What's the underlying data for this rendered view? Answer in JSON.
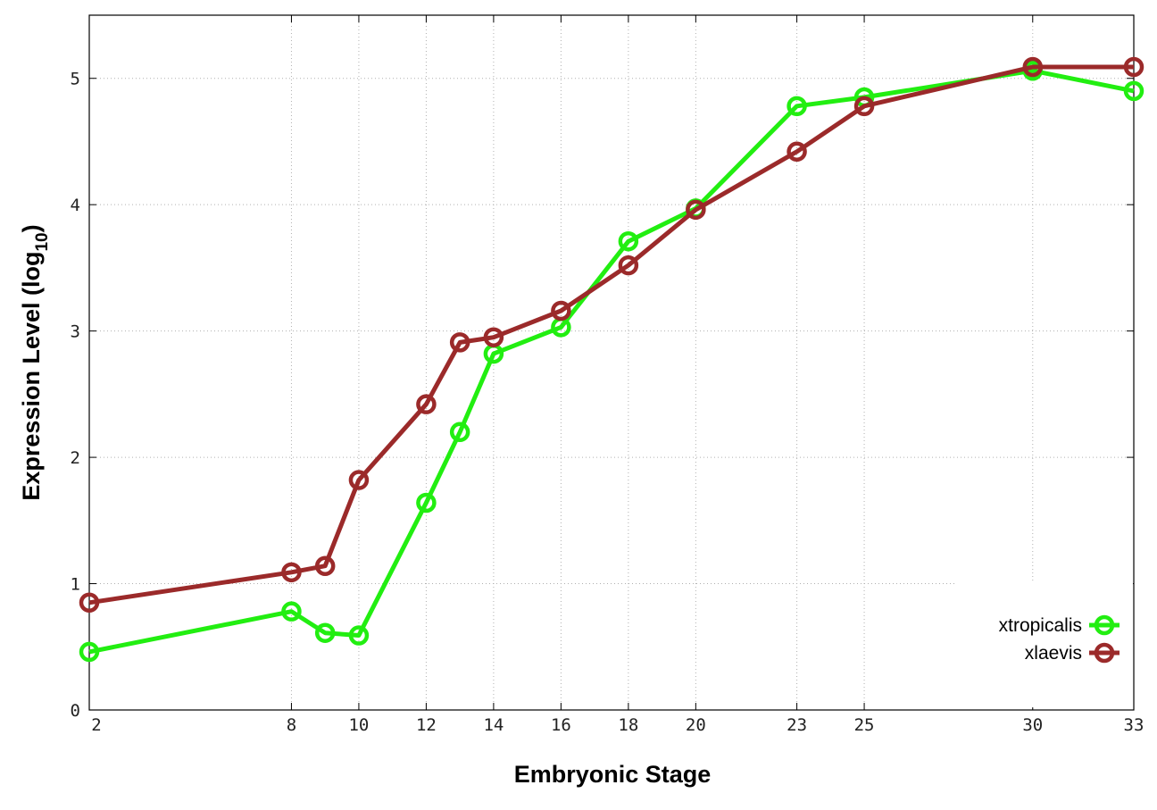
{
  "chart_data": {
    "type": "line",
    "xlabel": "Embryonic Stage",
    "ylabel_main": "Expression Level (log",
    "ylabel_sub": "10",
    "ylabel_close": ")",
    "x": [
      2,
      8,
      9,
      10,
      12,
      13,
      14,
      16,
      18,
      20,
      23,
      25,
      30,
      33
    ],
    "xticks": [
      2,
      8,
      10,
      12,
      14,
      16,
      18,
      20,
      23,
      25,
      30,
      33
    ],
    "yticks": [
      0,
      1,
      2,
      3,
      4,
      5
    ],
    "xlim": [
      2,
      33
    ],
    "ylim": [
      0,
      5.5
    ],
    "grid": true,
    "legend_position": "bottom-right",
    "series": [
      {
        "name": "xtropicalis",
        "color": "#22ee11",
        "values": [
          0.46,
          0.78,
          0.61,
          0.59,
          1.64,
          2.2,
          2.82,
          3.03,
          3.71,
          3.97,
          4.78,
          4.85,
          5.06,
          4.9
        ]
      },
      {
        "name": "xlaevis",
        "color": "#9b2a2a",
        "values": [
          0.85,
          1.09,
          1.14,
          1.82,
          2.42,
          2.91,
          2.95,
          3.16,
          3.52,
          3.96,
          4.42,
          4.78,
          5.09,
          5.09
        ]
      }
    ]
  }
}
